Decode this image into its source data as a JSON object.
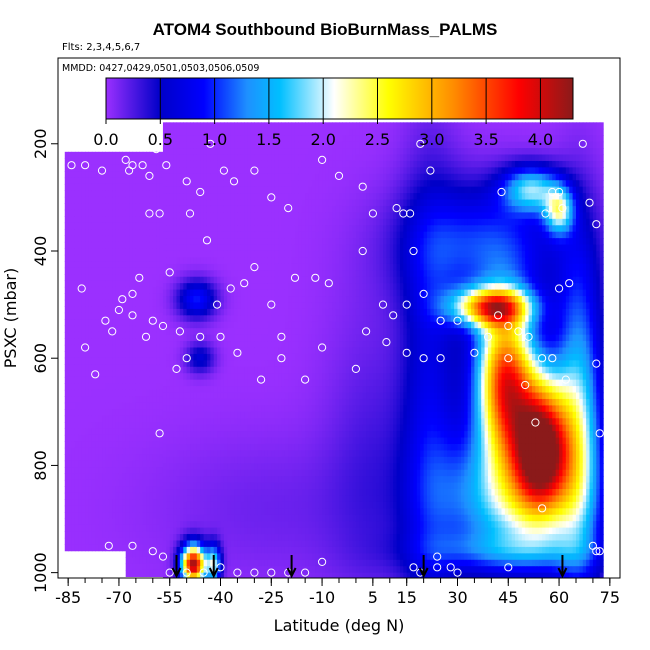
{
  "chart_data": {
    "type": "heatmap",
    "title": "ATOM4 Southbound BioBurnMass_PALMS",
    "note_flights": "Flts: 2,3,4,5,6,7",
    "note_dates": "MMDD: 0427,0429,0501,0503,0506,0509",
    "xlabel": "Latitude (deg N)",
    "ylabel": "PSXC (mbar)",
    "xlim": [
      -88,
      78
    ],
    "ylim": [
      1010,
      40
    ],
    "x_ticks": [
      -85,
      -70,
      -55,
      -40,
      -25,
      -10,
      5,
      15,
      30,
      45,
      60,
      75
    ],
    "x_tick_labels": [
      "-85",
      "-70",
      "-55",
      "-40",
      "-25",
      "-10",
      "5",
      "15",
      "30",
      "45",
      "60",
      "75"
    ],
    "x_minor_step": 5,
    "y_ticks": [
      200,
      400,
      600,
      800,
      1000
    ],
    "y_tick_labels": [
      "200",
      "400",
      "600",
      "800",
      "1000"
    ],
    "colorbar": {
      "min": 0,
      "max": 4.3,
      "ticks": [
        0.0,
        0.5,
        1.0,
        1.5,
        2.0,
        2.5,
        3.0,
        3.5,
        4.0
      ],
      "tick_labels": [
        "0.0",
        "0.5",
        "1.0",
        "1.5",
        "2.0",
        "2.5",
        "3.0",
        "3.5",
        "4.0"
      ],
      "colors": [
        "#9b30ff",
        "#0000c8",
        "#0000ff",
        "#1e90ff",
        "#00bfff",
        "#ffffff",
        "#ffff00",
        "#ff8c00",
        "#ff0000",
        "#8b1a1a"
      ],
      "stops": [
        0.0,
        0.5,
        0.9,
        1.3,
        1.6,
        2.1,
        2.6,
        3.2,
        3.8,
        4.3
      ]
    },
    "colors": {
      "background_field": "#9b30ff",
      "observation_marker": "#ffffff",
      "profile_arrow": "#000000"
    },
    "profile_arrows_lat": [
      -53,
      -42,
      -19,
      20,
      61
    ],
    "field_extent": {
      "lat_min": -86,
      "lat_max": 73,
      "p_top": 160,
      "p_bottom": 1005,
      "south_cutoff_lat": -68,
      "south_cutoff_p": 950
    },
    "plumes": [
      {
        "lat": -47,
        "p": 490,
        "sigma_lat": 4,
        "sigma_p": 25,
        "value": 0.95
      },
      {
        "lat": -46,
        "p": 600,
        "sigma_lat": 3,
        "sigma_p": 20,
        "value": 0.6
      },
      {
        "lat": -48,
        "p": 985,
        "sigma_lat": 2.5,
        "sigma_p": 25,
        "value": 4.2
      },
      {
        "lat": -42,
        "p": 985,
        "sigma_lat": 1.5,
        "sigma_p": 25,
        "value": 1.8
      },
      {
        "lat": -25,
        "p": 880,
        "sigma_lat": 25,
        "sigma_p": 100,
        "value": 0.15
      },
      {
        "lat": 5,
        "p": 800,
        "sigma_lat": 10,
        "sigma_p": 220,
        "value": 0.25
      },
      {
        "lat": 22,
        "p": 720,
        "sigma_lat": 6,
        "sigma_p": 320,
        "value": 0.7
      },
      {
        "lat": 38,
        "p": 390,
        "sigma_lat": 16,
        "sigma_p": 80,
        "value": 1.05
      },
      {
        "lat": 52,
        "p": 285,
        "sigma_lat": 6,
        "sigma_p": 30,
        "value": 1.6
      },
      {
        "lat": 60,
        "p": 325,
        "sigma_lat": 3,
        "sigma_p": 30,
        "value": 1.7
      },
      {
        "lat": 40,
        "p": 505,
        "sigma_lat": 8,
        "sigma_p": 25,
        "value": 2.7
      },
      {
        "lat": 44,
        "p": 640,
        "sigma_lat": 6,
        "sigma_p": 100,
        "value": 3.5
      },
      {
        "lat": 55,
        "p": 760,
        "sigma_lat": 6,
        "sigma_p": 90,
        "value": 3.8
      },
      {
        "lat": 46,
        "p": 860,
        "sigma_lat": 14,
        "sigma_p": 90,
        "value": 1.8
      },
      {
        "lat": 45,
        "p": 960,
        "sigma_lat": 18,
        "sigma_p": 25,
        "value": 0.6
      },
      {
        "lat": 66,
        "p": 720,
        "sigma_lat": 5,
        "sigma_p": 220,
        "value": 1.6
      }
    ],
    "observations": [
      [
        -84,
        240
      ],
      [
        -80,
        240
      ],
      [
        -75,
        250
      ],
      [
        -68,
        230
      ],
      [
        -67,
        250
      ],
      [
        -66,
        240
      ],
      [
        -63,
        240
      ],
      [
        -61,
        260
      ],
      [
        -59,
        210
      ],
      [
        -56,
        240
      ],
      [
        -50,
        270
      ],
      [
        -46,
        290
      ],
      [
        -43,
        200
      ],
      [
        -39,
        250
      ],
      [
        -36,
        270
      ],
      [
        -30,
        250
      ],
      [
        -25,
        300
      ],
      [
        -20,
        320
      ],
      [
        -10,
        230
      ],
      [
        -5,
        260
      ],
      [
        2,
        280
      ],
      [
        5,
        330
      ],
      [
        12,
        320
      ],
      [
        14,
        330
      ],
      [
        16,
        330
      ],
      [
        19,
        200
      ],
      [
        22,
        250
      ],
      [
        43,
        290
      ],
      [
        56,
        330
      ],
      [
        58,
        290
      ],
      [
        60,
        290
      ],
      [
        61,
        320
      ],
      [
        67,
        200
      ],
      [
        69,
        310
      ],
      [
        71,
        350
      ],
      [
        -81,
        470
      ],
      [
        -74,
        530
      ],
      [
        -69,
        490
      ],
      [
        -66,
        480
      ],
      [
        -64,
        450
      ],
      [
        -61,
        330
      ],
      [
        -58,
        330
      ],
      [
        -55,
        440
      ],
      [
        -52,
        550
      ],
      [
        -49,
        330
      ],
      [
        -44,
        380
      ],
      [
        -41,
        500
      ],
      [
        -37,
        470
      ],
      [
        -33,
        460
      ],
      [
        -30,
        430
      ],
      [
        -25,
        500
      ],
      [
        -22,
        560
      ],
      [
        -18,
        450
      ],
      [
        -12,
        450
      ],
      [
        -8,
        460
      ],
      [
        2,
        400
      ],
      [
        3,
        550
      ],
      [
        8,
        500
      ],
      [
        11,
        520
      ],
      [
        15,
        500
      ],
      [
        17,
        400
      ],
      [
        20,
        480
      ],
      [
        25,
        530
      ],
      [
        30,
        530
      ],
      [
        35,
        590
      ],
      [
        39,
        560
      ],
      [
        42,
        520
      ],
      [
        45,
        540
      ],
      [
        48,
        550
      ],
      [
        51,
        560
      ],
      [
        55,
        600
      ],
      [
        58,
        600
      ],
      [
        60,
        470
      ],
      [
        63,
        460
      ],
      [
        -80,
        580
      ],
      [
        -77,
        630
      ],
      [
        -72,
        550
      ],
      [
        -70,
        510
      ],
      [
        -66,
        520
      ],
      [
        -62,
        560
      ],
      [
        -60,
        530
      ],
      [
        -57,
        540
      ],
      [
        -53,
        620
      ],
      [
        -50,
        600
      ],
      [
        -46,
        560
      ],
      [
        -40,
        560
      ],
      [
        -35,
        590
      ],
      [
        -28,
        640
      ],
      [
        -22,
        600
      ],
      [
        -15,
        640
      ],
      [
        -10,
        580
      ],
      [
        0,
        620
      ],
      [
        9,
        570
      ],
      [
        15,
        590
      ],
      [
        20,
        600
      ],
      [
        25,
        600
      ],
      [
        45,
        600
      ],
      [
        50,
        650
      ],
      [
        53,
        720
      ],
      [
        62,
        640
      ],
      [
        -58,
        740
      ],
      [
        -57,
        970
      ],
      [
        -60,
        960
      ],
      [
        -66,
        950
      ],
      [
        -70,
        970
      ],
      [
        -73,
        950
      ],
      [
        -55,
        1000
      ],
      [
        -50,
        1000
      ],
      [
        -45,
        1000
      ],
      [
        -40,
        990
      ],
      [
        -35,
        1000
      ],
      [
        -30,
        1000
      ],
      [
        -25,
        1000
      ],
      [
        -20,
        1000
      ],
      [
        -15,
        1000
      ],
      [
        -10,
        980
      ],
      [
        17,
        990
      ],
      [
        19,
        1000
      ],
      [
        24,
        970
      ],
      [
        24,
        990
      ],
      [
        28,
        990
      ],
      [
        30,
        1000
      ],
      [
        45,
        990
      ],
      [
        55,
        880
      ],
      [
        70,
        950
      ],
      [
        71,
        960
      ],
      [
        72,
        960
      ],
      [
        72,
        740
      ],
      [
        71,
        610
      ]
    ]
  }
}
